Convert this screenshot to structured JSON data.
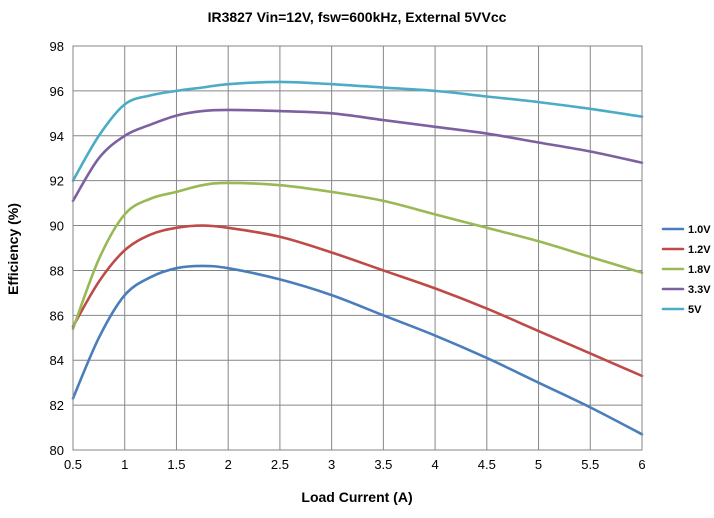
{
  "chart_data": {
    "type": "line",
    "title": "IR3827 Vin=12V, fsw=600kHz, External 5VVcc",
    "xlabel": "Load Current (A)",
    "ylabel": "Efficiency (%)",
    "xlim": [
      0.5,
      6
    ],
    "ylim": [
      80,
      98
    ],
    "x_ticks": [
      "0.5",
      "1",
      "1.5",
      "2",
      "2.5",
      "3",
      "3.5",
      "4",
      "4.5",
      "5",
      "5.5",
      "6"
    ],
    "y_ticks": [
      "80",
      "82",
      "84",
      "86",
      "88",
      "90",
      "92",
      "94",
      "96",
      "98"
    ],
    "grid": true,
    "legend_position": "right",
    "x": [
      0.5,
      0.75,
      1.0,
      1.25,
      1.5,
      1.75,
      2.0,
      2.5,
      3.0,
      3.5,
      4.0,
      4.5,
      5.0,
      5.5,
      6.0
    ],
    "series": [
      {
        "name": "1.0V",
        "color": "#4a7ebb",
        "values": [
          82.3,
          85.0,
          86.9,
          87.7,
          88.1,
          88.2,
          88.1,
          87.6,
          86.9,
          86.0,
          85.1,
          84.1,
          83.0,
          81.9,
          80.7
        ]
      },
      {
        "name": "1.2V",
        "color": "#be4b48",
        "values": [
          85.5,
          87.5,
          88.9,
          89.6,
          89.9,
          90.0,
          89.9,
          89.5,
          88.8,
          88.0,
          87.2,
          86.3,
          85.3,
          84.3,
          83.3
        ]
      },
      {
        "name": "1.8V",
        "color": "#98b954",
        "values": [
          85.4,
          88.5,
          90.5,
          91.2,
          91.5,
          91.8,
          91.9,
          91.8,
          91.5,
          91.1,
          90.5,
          89.9,
          89.3,
          88.6,
          87.9
        ]
      },
      {
        "name": "3.3V",
        "color": "#7d60a0",
        "values": [
          91.1,
          93.0,
          94.0,
          94.5,
          94.9,
          95.1,
          95.15,
          95.1,
          95.0,
          94.7,
          94.4,
          94.1,
          93.7,
          93.3,
          92.8
        ]
      },
      {
        "name": "5V",
        "color": "#4bacc6",
        "values": [
          92.0,
          94.0,
          95.4,
          95.8,
          96.0,
          96.15,
          96.3,
          96.4,
          96.3,
          96.15,
          96.0,
          95.75,
          95.5,
          95.2,
          94.85
        ]
      }
    ]
  }
}
